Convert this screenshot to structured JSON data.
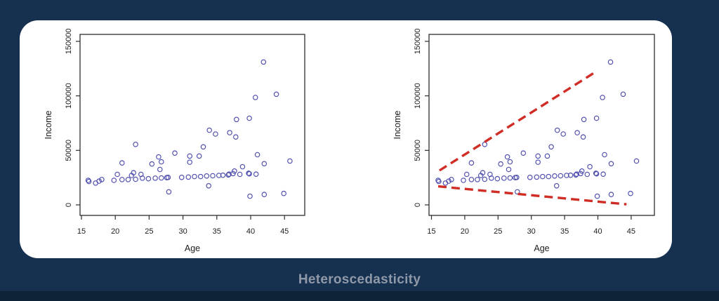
{
  "window": {
    "background": "#163050",
    "bottom_strip_color": "#0d2137",
    "card_background": "#ffffff",
    "caption": "Heteroscedasticity",
    "caption_color": "#8f99a8"
  },
  "chart_data": [
    {
      "type": "scatter",
      "title": "",
      "xlabel": "Age",
      "ylabel": "Income",
      "xlim": [
        14.8,
        48.3
      ],
      "ylim": [
        -10500,
        156500
      ],
      "grid": false,
      "legend": null,
      "frame_color": "#2e2e2e",
      "point_color": "#4d4dae",
      "xticks": [
        {
          "value": 15,
          "label": "15"
        },
        {
          "value": 20,
          "label": "20"
        },
        {
          "value": 25,
          "label": "25"
        },
        {
          "value": 30,
          "label": "30"
        },
        {
          "value": 35,
          "label": "35"
        },
        {
          "value": 40,
          "label": "40"
        },
        {
          "value": 45,
          "label": "45"
        }
      ],
      "yticks": [
        {
          "value": 0,
          "label": "0"
        },
        {
          "value": 50000,
          "label": "50000"
        },
        {
          "value": 100000,
          "label": "100000"
        },
        {
          "value": 150000,
          "label": "150000"
        }
      ],
      "points": [
        [
          16,
          22500
        ],
        [
          16.1,
          21500
        ],
        [
          17.1,
          20000
        ],
        [
          17.6,
          21800
        ],
        [
          18,
          23200
        ],
        [
          19.8,
          22500
        ],
        [
          20.3,
          28000
        ],
        [
          21,
          38500
        ],
        [
          21,
          23200
        ],
        [
          21.9,
          23200
        ],
        [
          22.4,
          27000
        ],
        [
          22.7,
          29500
        ],
        [
          23,
          55500
        ],
        [
          23,
          23500
        ],
        [
          23.8,
          28000
        ],
        [
          24,
          24500
        ],
        [
          24.9,
          24000
        ],
        [
          25.4,
          37500
        ],
        [
          25.9,
          24500
        ],
        [
          26.4,
          44000
        ],
        [
          26.6,
          32500
        ],
        [
          26.8,
          39500
        ],
        [
          26.8,
          24700
        ],
        [
          27.6,
          25000
        ],
        [
          27.8,
          25200
        ],
        [
          27.9,
          12000
        ],
        [
          28.8,
          47500
        ],
        [
          29.8,
          25200
        ],
        [
          31,
          44800
        ],
        [
          31,
          39200
        ],
        [
          30.8,
          25500
        ],
        [
          31.7,
          26000
        ],
        [
          32.4,
          44800
        ],
        [
          32.6,
          26000
        ],
        [
          33,
          53200
        ],
        [
          33.5,
          26500
        ],
        [
          33.9,
          68500
        ],
        [
          33.8,
          17500
        ],
        [
          34.4,
          26700
        ],
        [
          34.8,
          65000
        ],
        [
          35.3,
          27000
        ],
        [
          35.9,
          27200
        ],
        [
          36.9,
          66200
        ],
        [
          36.7,
          27500
        ],
        [
          36.8,
          28200
        ],
        [
          37.4,
          28700
        ],
        [
          37.6,
          31000
        ],
        [
          37.9,
          78300
        ],
        [
          37.8,
          62300
        ],
        [
          38.4,
          28000
        ],
        [
          38.8,
          35000
        ],
        [
          39.8,
          79500
        ],
        [
          39.7,
          29000
        ],
        [
          39.8,
          28500
        ],
        [
          39.9,
          8000
        ],
        [
          40.7,
          98500
        ],
        [
          41,
          46000
        ],
        [
          40.8,
          28200
        ],
        [
          41.9,
          131000
        ],
        [
          42,
          9500
        ],
        [
          42,
          37800
        ],
        [
          43.8,
          101500
        ],
        [
          44.9,
          10500
        ],
        [
          45.8,
          40200
        ]
      ]
    },
    {
      "type": "scatter",
      "title": "",
      "xlabel": "Age",
      "ylabel": "Income",
      "xlim": [
        14.8,
        48.5
      ],
      "ylim": [
        -10500,
        156500
      ],
      "grid": false,
      "legend": null,
      "frame_color": "#2e2e2e",
      "point_color": "#4d4dae",
      "xticks": [
        {
          "value": 15,
          "label": "15"
        },
        {
          "value": 20,
          "label": "20"
        },
        {
          "value": 25,
          "label": "25"
        },
        {
          "value": 30,
          "label": "30"
        },
        {
          "value": 35,
          "label": "35"
        },
        {
          "value": 40,
          "label": "40"
        },
        {
          "value": 45,
          "label": "45"
        }
      ],
      "yticks": [
        {
          "value": 0,
          "label": "0"
        },
        {
          "value": 50000,
          "label": "50000"
        },
        {
          "value": 100000,
          "label": "100000"
        },
        {
          "value": 150000,
          "label": "150000"
        }
      ],
      "points_note": "same data points as first panel",
      "annotation_lines": [
        {
          "x1": 16.2,
          "y1": 31500,
          "x2": 39.8,
          "y2": 122500,
          "color": "#cf2d25",
          "style": "dashed"
        },
        {
          "x1": 16.0,
          "y1": 17000,
          "x2": 44.3,
          "y2": 500,
          "color": "#cf2d25",
          "style": "dashed"
        }
      ]
    }
  ]
}
